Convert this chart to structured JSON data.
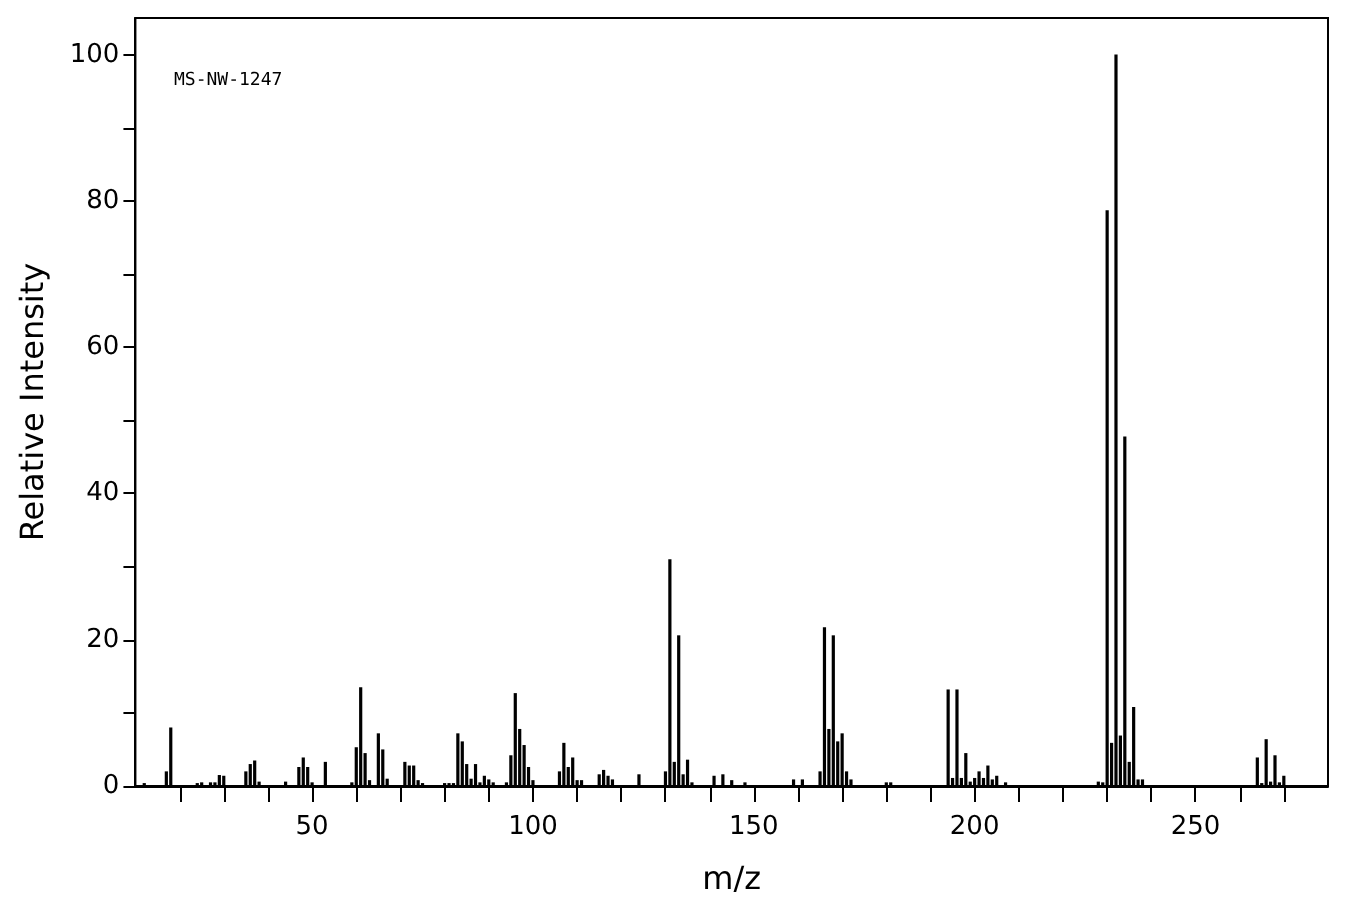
{
  "chart_data": {
    "type": "bar",
    "xlabel": "m/z",
    "ylabel": "Relative Intensity",
    "annotations": [
      "MS-NW-1247"
    ],
    "color": "#000000",
    "x": [
      12,
      17,
      18,
      24,
      25,
      27,
      28,
      29,
      30,
      35,
      36,
      37,
      38,
      44,
      47,
      48,
      49,
      50,
      53,
      59,
      60,
      61,
      62,
      63,
      65,
      66,
      67,
      71,
      72,
      73,
      74,
      75,
      80,
      81,
      82,
      83,
      84,
      85,
      86,
      87,
      88,
      89,
      90,
      91,
      94,
      95,
      96,
      97,
      98,
      99,
      100,
      106,
      107,
      108,
      109,
      110,
      111,
      115,
      116,
      117,
      118,
      124,
      130,
      131,
      132,
      133,
      134,
      135,
      136,
      141,
      143,
      145,
      148,
      159,
      161,
      165,
      166,
      167,
      168,
      169,
      170,
      171,
      172,
      180,
      181,
      194,
      195,
      196,
      197,
      198,
      199,
      200,
      201,
      202,
      203,
      204,
      205,
      207,
      228,
      229,
      230,
      231,
      232,
      233,
      234,
      235,
      236,
      237,
      238,
      264,
      265,
      266,
      267,
      268,
      269,
      270
    ],
    "values": [
      0.4,
      2,
      8,
      0.4,
      0.5,
      0.5,
      0.5,
      1.5,
      1.4,
      2,
      3,
      3.5,
      0.6,
      0.6,
      2.6,
      3.9,
      2.6,
      0.5,
      3.3,
      0.5,
      5.3,
      13.5,
      4.5,
      0.8,
      7.2,
      5,
      1,
      3.3,
      2.8,
      2.8,
      0.8,
      0.4,
      0.4,
      0.4,
      0.4,
      7.2,
      6.1,
      3,
      1,
      3,
      0.5,
      1.4,
      0.9,
      0.5,
      0.5,
      4.2,
      12.7,
      7.8,
      5.6,
      2.6,
      0.8,
      2,
      5.9,
      2.6,
      3.9,
      0.8,
      0.8,
      1.6,
      2.2,
      1.4,
      0.9,
      1.6,
      2,
      31,
      3.3,
      20.6,
      1.6,
      3.6,
      0.5,
      1.4,
      1.6,
      0.8,
      0.5,
      0.9,
      0.9,
      2,
      21.7,
      7.8,
      20.6,
      6.1,
      7.2,
      2,
      0.9,
      0.5,
      0.5,
      13.2,
      1.1,
      13.2,
      1.1,
      4.5,
      0.6,
      1.1,
      2,
      1.1,
      2.8,
      0.9,
      1.4,
      0.5,
      0.6,
      0.5,
      78.7,
      5.9,
      100,
      6.9,
      47.8,
      3.3,
      10.8,
      0.9,
      0.9,
      3.9,
      0.4,
      6.4,
      0.6,
      4.2,
      0.5,
      1.4
    ],
    "xlim": [
      10,
      280
    ],
    "xticks": [
      {
        "value": 20,
        "label": null
      },
      {
        "value": 30,
        "label": null
      },
      {
        "value": 40,
        "label": null
      },
      50,
      {
        "value": 60,
        "label": null
      },
      {
        "value": 70,
        "label": null
      },
      {
        "value": 80,
        "label": null
      },
      {
        "value": 90,
        "label": null
      },
      100,
      {
        "value": 110,
        "label": null
      },
      {
        "value": 120,
        "label": null
      },
      {
        "value": 130,
        "label": null
      },
      {
        "value": 140,
        "label": null
      },
      150,
      {
        "value": 160,
        "label": null
      },
      {
        "value": 170,
        "label": null
      },
      {
        "value": 180,
        "label": null
      },
      {
        "value": 190,
        "label": null
      },
      200,
      {
        "value": 210,
        "label": null
      },
      {
        "value": 220,
        "label": null
      },
      {
        "value": 230,
        "label": null
      },
      {
        "value": 240,
        "label": null
      },
      250,
      {
        "value": 260,
        "label": null
      },
      {
        "value": 270,
        "label": null
      }
    ],
    "ylim": [
      0,
      105
    ],
    "yticks": [
      0,
      {
        "value": 10,
        "label": null
      },
      20,
      {
        "value": 30,
        "label": null
      },
      40,
      {
        "value": 50,
        "label": null
      },
      60,
      {
        "value": 70,
        "label": null
      },
      80,
      {
        "value": 90,
        "label": null
      },
      100
    ]
  }
}
